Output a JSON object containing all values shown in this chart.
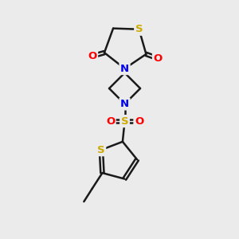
{
  "bg_color": "#ebebeb",
  "bond_color": "#1a1a1a",
  "S_color": "#ccaa00",
  "N_color": "#0000ee",
  "O_color": "#ff0000",
  "line_width": 1.8,
  "font_size_atom": 9.5,
  "fig_xlim": [
    0,
    10
  ],
  "fig_ylim": [
    0,
    10
  ]
}
